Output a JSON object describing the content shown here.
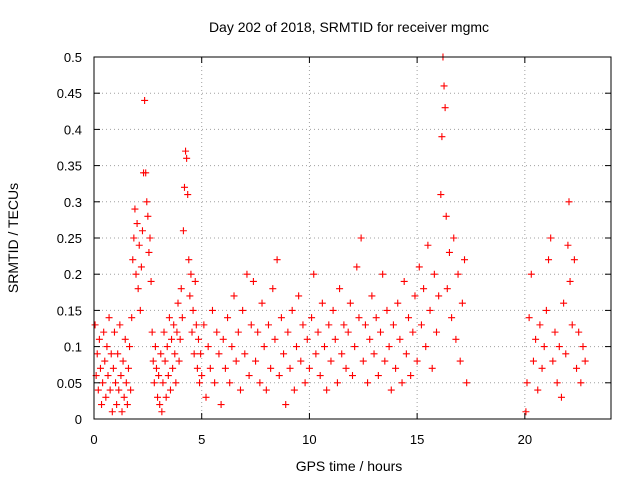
{
  "chart_data": {
    "type": "scatter",
    "title": "Day 202 of 2018, SRMTID for receiver mgmc",
    "xlabel": "GPS time / hours",
    "ylabel": "SRMTID / TECUs",
    "xlim": [
      0,
      24
    ],
    "ylim": [
      0,
      0.5
    ],
    "x_ticks": [
      0,
      5,
      10,
      15,
      20
    ],
    "y_ticks": [
      0,
      0.05,
      0.1,
      0.15,
      0.2,
      0.25,
      0.3,
      0.35,
      0.4,
      0.45,
      0.5
    ],
    "x_tick_labels": [
      "0",
      "5",
      "10",
      "15",
      "20"
    ],
    "y_tick_labels": [
      "0",
      "0.05",
      "0.1",
      "0.15",
      "0.2",
      "0.25",
      "0.3",
      "0.35",
      "0.4",
      "0.45",
      "0.5"
    ],
    "grid": true,
    "marker": "+",
    "color": "#ff0000",
    "points": [
      [
        0.05,
        0.13
      ],
      [
        0.1,
        0.06
      ],
      [
        0.15,
        0.09
      ],
      [
        0.2,
        0.04
      ],
      [
        0.25,
        0.11
      ],
      [
        0.3,
        0.07
      ],
      [
        0.35,
        0.02
      ],
      [
        0.4,
        0.05
      ],
      [
        0.45,
        0.12
      ],
      [
        0.5,
        0.08
      ],
      [
        0.55,
        0.03
      ],
      [
        0.6,
        0.1
      ],
      [
        0.65,
        0.06
      ],
      [
        0.7,
        0.14
      ],
      [
        0.75,
        0.04
      ],
      [
        0.8,
        0.09
      ],
      [
        0.85,
        0.01
      ],
      [
        0.9,
        0.07
      ],
      [
        0.95,
        0.12
      ],
      [
        1.0,
        0.05
      ],
      [
        1.05,
        0.02
      ],
      [
        1.1,
        0.09
      ],
      [
        1.15,
        0.04
      ],
      [
        1.2,
        0.13
      ],
      [
        1.25,
        0.06
      ],
      [
        1.3,
        0.01
      ],
      [
        1.35,
        0.08
      ],
      [
        1.4,
        0.03
      ],
      [
        1.45,
        0.11
      ],
      [
        1.5,
        0.05
      ],
      [
        1.55,
        0.02
      ],
      [
        1.6,
        0.07
      ],
      [
        1.65,
        0.1
      ],
      [
        1.7,
        0.04
      ],
      [
        1.75,
        0.14
      ],
      [
        1.8,
        0.22
      ],
      [
        1.85,
        0.25
      ],
      [
        1.9,
        0.29
      ],
      [
        1.95,
        0.2
      ],
      [
        2.0,
        0.27
      ],
      [
        2.05,
        0.18
      ],
      [
        2.1,
        0.24
      ],
      [
        2.15,
        0.15
      ],
      [
        2.2,
        0.21
      ],
      [
        2.25,
        0.26
      ],
      [
        2.3,
        0.34
      ],
      [
        2.35,
        0.44
      ],
      [
        2.4,
        0.34
      ],
      [
        2.45,
        0.3
      ],
      [
        2.5,
        0.28
      ],
      [
        2.55,
        0.23
      ],
      [
        2.6,
        0.25
      ],
      [
        2.65,
        0.19
      ],
      [
        2.7,
        0.12
      ],
      [
        2.75,
        0.08
      ],
      [
        2.8,
        0.05
      ],
      [
        2.85,
        0.1
      ],
      [
        2.9,
        0.07
      ],
      [
        2.95,
        0.03
      ],
      [
        3.0,
        0.06
      ],
      [
        3.05,
        0.02
      ],
      [
        3.1,
        0.09
      ],
      [
        3.15,
        0.01
      ],
      [
        3.2,
        0.05
      ],
      [
        3.25,
        0.12
      ],
      [
        3.3,
        0.08
      ],
      [
        3.35,
        0.03
      ],
      [
        3.4,
        0.1
      ],
      [
        3.45,
        0.06
      ],
      [
        3.5,
        0.14
      ],
      [
        3.55,
        0.04
      ],
      [
        3.6,
        0.11
      ],
      [
        3.65,
        0.07
      ],
      [
        3.7,
        0.13
      ],
      [
        3.75,
        0.09
      ],
      [
        3.8,
        0.05
      ],
      [
        3.85,
        0.12
      ],
      [
        3.9,
        0.16
      ],
      [
        3.95,
        0.08
      ],
      [
        4.0,
        0.11
      ],
      [
        4.05,
        0.18
      ],
      [
        4.1,
        0.14
      ],
      [
        4.15,
        0.26
      ],
      [
        4.2,
        0.32
      ],
      [
        4.25,
        0.37
      ],
      [
        4.3,
        0.36
      ],
      [
        4.35,
        0.31
      ],
      [
        4.4,
        0.22
      ],
      [
        4.45,
        0.17
      ],
      [
        4.5,
        0.2
      ],
      [
        4.55,
        0.12
      ],
      [
        4.6,
        0.15
      ],
      [
        4.65,
        0.09
      ],
      [
        4.7,
        0.19
      ],
      [
        4.75,
        0.13
      ],
      [
        4.8,
        0.07
      ],
      [
        4.85,
        0.11
      ],
      [
        4.9,
        0.05
      ],
      [
        4.95,
        0.09
      ],
      [
        5.0,
        0.06
      ],
      [
        5.1,
        0.13
      ],
      [
        5.2,
        0.03
      ],
      [
        5.3,
        0.1
      ],
      [
        5.4,
        0.07
      ],
      [
        5.5,
        0.15
      ],
      [
        5.6,
        0.05
      ],
      [
        5.7,
        0.12
      ],
      [
        5.8,
        0.09
      ],
      [
        5.9,
        0.02
      ],
      [
        6.0,
        0.11
      ],
      [
        6.1,
        0.07
      ],
      [
        6.2,
        0.14
      ],
      [
        6.3,
        0.05
      ],
      [
        6.4,
        0.1
      ],
      [
        6.5,
        0.17
      ],
      [
        6.6,
        0.08
      ],
      [
        6.7,
        0.12
      ],
      [
        6.8,
        0.04
      ],
      [
        6.9,
        0.15
      ],
      [
        7.0,
        0.09
      ],
      [
        7.1,
        0.2
      ],
      [
        7.2,
        0.06
      ],
      [
        7.3,
        0.13
      ],
      [
        7.4,
        0.19
      ],
      [
        7.5,
        0.08
      ],
      [
        7.6,
        0.12
      ],
      [
        7.7,
        0.05
      ],
      [
        7.8,
        0.16
      ],
      [
        7.9,
        0.1
      ],
      [
        8.0,
        0.04
      ],
      [
        8.1,
        0.13
      ],
      [
        8.2,
        0.07
      ],
      [
        8.3,
        0.18
      ],
      [
        8.4,
        0.11
      ],
      [
        8.5,
        0.22
      ],
      [
        8.6,
        0.06
      ],
      [
        8.7,
        0.14
      ],
      [
        8.8,
        0.09
      ],
      [
        8.9,
        0.02
      ],
      [
        9.0,
        0.12
      ],
      [
        9.1,
        0.07
      ],
      [
        9.2,
        0.15
      ],
      [
        9.3,
        0.04
      ],
      [
        9.4,
        0.1
      ],
      [
        9.5,
        0.17
      ],
      [
        9.6,
        0.08
      ],
      [
        9.7,
        0.13
      ],
      [
        9.8,
        0.05
      ],
      [
        9.9,
        0.11
      ],
      [
        10.0,
        0.07
      ],
      [
        10.1,
        0.14
      ],
      [
        10.2,
        0.2
      ],
      [
        10.3,
        0.09
      ],
      [
        10.4,
        0.12
      ],
      [
        10.5,
        0.06
      ],
      [
        10.6,
        0.16
      ],
      [
        10.7,
        0.1
      ],
      [
        10.8,
        0.04
      ],
      [
        10.9,
        0.13
      ],
      [
        11.0,
        0.08
      ],
      [
        11.1,
        0.15
      ],
      [
        11.2,
        0.11
      ],
      [
        11.3,
        0.05
      ],
      [
        11.4,
        0.18
      ],
      [
        11.5,
        0.09
      ],
      [
        11.6,
        0.13
      ],
      [
        11.7,
        0.07
      ],
      [
        11.8,
        0.12
      ],
      [
        11.9,
        0.16
      ],
      [
        12.0,
        0.06
      ],
      [
        12.1,
        0.1
      ],
      [
        12.2,
        0.21
      ],
      [
        12.3,
        0.14
      ],
      [
        12.4,
        0.25
      ],
      [
        12.5,
        0.08
      ],
      [
        12.6,
        0.13
      ],
      [
        12.7,
        0.05
      ],
      [
        12.8,
        0.11
      ],
      [
        12.9,
        0.17
      ],
      [
        13.0,
        0.09
      ],
      [
        13.1,
        0.14
      ],
      [
        13.2,
        0.06
      ],
      [
        13.3,
        0.12
      ],
      [
        13.4,
        0.2
      ],
      [
        13.5,
        0.08
      ],
      [
        13.6,
        0.15
      ],
      [
        13.7,
        0.1
      ],
      [
        13.8,
        0.04
      ],
      [
        13.9,
        0.13
      ],
      [
        14.0,
        0.07
      ],
      [
        14.1,
        0.16
      ],
      [
        14.2,
        0.11
      ],
      [
        14.3,
        0.05
      ],
      [
        14.4,
        0.19
      ],
      [
        14.5,
        0.09
      ],
      [
        14.6,
        0.14
      ],
      [
        14.7,
        0.06
      ],
      [
        14.8,
        0.12
      ],
      [
        14.9,
        0.17
      ],
      [
        15.0,
        0.08
      ],
      [
        15.1,
        0.21
      ],
      [
        15.2,
        0.13
      ],
      [
        15.3,
        0.18
      ],
      [
        15.4,
        0.1
      ],
      [
        15.5,
        0.24
      ],
      [
        15.6,
        0.15
      ],
      [
        15.7,
        0.07
      ],
      [
        15.8,
        0.2
      ],
      [
        15.9,
        0.12
      ],
      [
        16.0,
        0.17
      ],
      [
        16.1,
        0.31
      ],
      [
        16.15,
        0.39
      ],
      [
        16.2,
        0.5
      ],
      [
        16.25,
        0.46
      ],
      [
        16.3,
        0.43
      ],
      [
        16.35,
        0.28
      ],
      [
        16.4,
        0.18
      ],
      [
        16.5,
        0.23
      ],
      [
        16.6,
        0.14
      ],
      [
        16.7,
        0.25
      ],
      [
        16.8,
        0.11
      ],
      [
        16.9,
        0.2
      ],
      [
        17.0,
        0.08
      ],
      [
        17.1,
        0.16
      ],
      [
        17.2,
        0.22
      ],
      [
        17.3,
        0.05
      ],
      [
        20.05,
        0.01
      ],
      [
        20.1,
        0.05
      ],
      [
        20.2,
        0.14
      ],
      [
        20.3,
        0.2
      ],
      [
        20.4,
        0.08
      ],
      [
        20.5,
        0.11
      ],
      [
        20.6,
        0.04
      ],
      [
        20.7,
        0.13
      ],
      [
        20.8,
        0.07
      ],
      [
        20.9,
        0.1
      ],
      [
        21.0,
        0.15
      ],
      [
        21.1,
        0.22
      ],
      [
        21.2,
        0.25
      ],
      [
        21.3,
        0.08
      ],
      [
        21.4,
        0.12
      ],
      [
        21.5,
        0.05
      ],
      [
        21.6,
        0.1
      ],
      [
        21.7,
        0.03
      ],
      [
        21.8,
        0.16
      ],
      [
        21.9,
        0.09
      ],
      [
        22.0,
        0.24
      ],
      [
        22.05,
        0.3
      ],
      [
        22.1,
        0.19
      ],
      [
        22.2,
        0.13
      ],
      [
        22.3,
        0.22
      ],
      [
        22.4,
        0.07
      ],
      [
        22.5,
        0.12
      ],
      [
        22.6,
        0.05
      ],
      [
        22.7,
        0.1
      ],
      [
        22.8,
        0.08
      ]
    ]
  }
}
